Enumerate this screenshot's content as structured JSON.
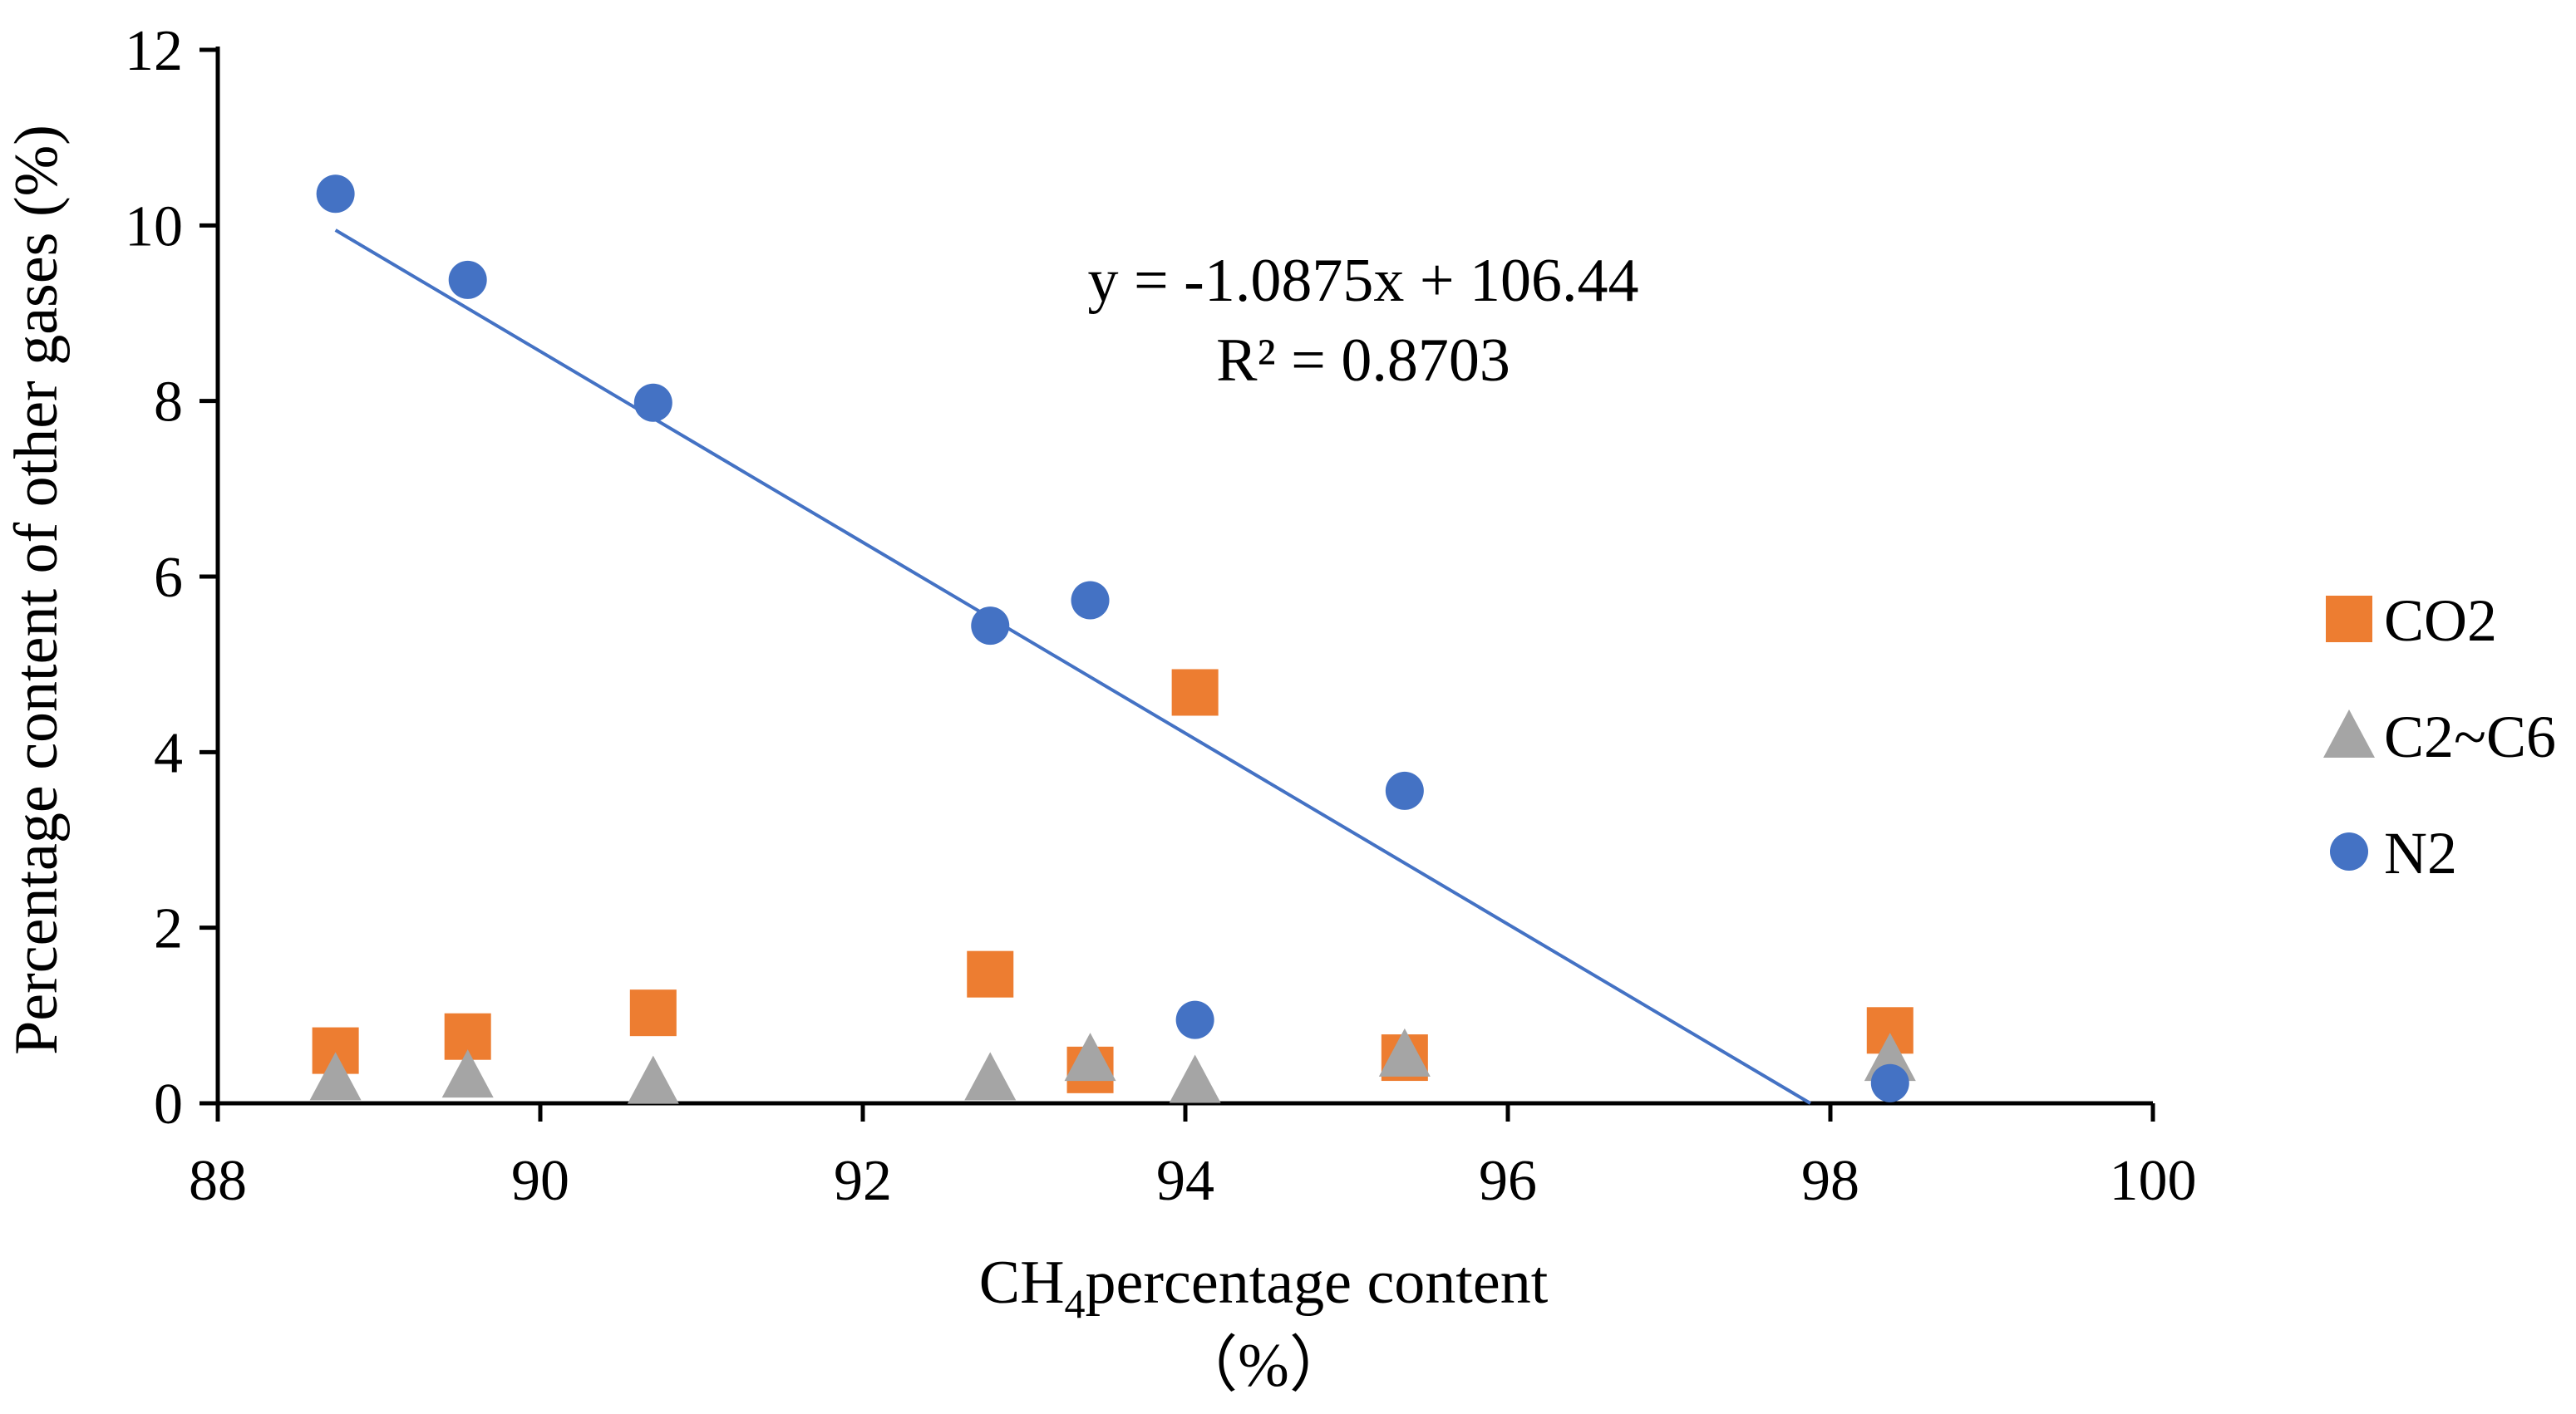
{
  "chart_data": {
    "type": "scatter",
    "title": "",
    "xlabel_main": "CH",
    "xlabel_sub": "4",
    "xlabel_rest": "percentage content",
    "xlabel_unit": "（%）",
    "ylabel": "Percentage content of other gases (%)",
    "xlim": [
      88,
      100
    ],
    "ylim": [
      0,
      12
    ],
    "x_ticks": [
      88,
      90,
      92,
      94,
      96,
      98,
      100
    ],
    "y_ticks": [
      0,
      2,
      4,
      6,
      8,
      10,
      12
    ],
    "grid": false,
    "legend_position": "right",
    "series": [
      {
        "name": "CO2",
        "marker": "square",
        "color": "#ED7D31",
        "points": [
          {
            "x": 88.73,
            "y": 0.6
          },
          {
            "x": 89.55,
            "y": 0.76
          },
          {
            "x": 90.7,
            "y": 1.03
          },
          {
            "x": 92.79,
            "y": 1.47
          },
          {
            "x": 93.41,
            "y": 0.38
          },
          {
            "x": 94.06,
            "y": 4.68
          },
          {
            "x": 95.36,
            "y": 0.52
          },
          {
            "x": 98.37,
            "y": 0.83
          }
        ]
      },
      {
        "name": "C2~C6",
        "marker": "triangle",
        "color": "#A5A5A5",
        "points": [
          {
            "x": 88.73,
            "y": 0.29
          },
          {
            "x": 89.55,
            "y": 0.32
          },
          {
            "x": 90.7,
            "y": 0.25
          },
          {
            "x": 92.79,
            "y": 0.29
          },
          {
            "x": 93.41,
            "y": 0.51
          },
          {
            "x": 94.06,
            "y": 0.26
          },
          {
            "x": 95.36,
            "y": 0.56
          },
          {
            "x": 98.37,
            "y": 0.51
          }
        ]
      },
      {
        "name": "N2",
        "marker": "circle",
        "color": "#4472C4",
        "points": [
          {
            "x": 88.73,
            "y": 10.36
          },
          {
            "x": 89.55,
            "y": 9.38
          },
          {
            "x": 90.7,
            "y": 7.98
          },
          {
            "x": 92.79,
            "y": 5.44
          },
          {
            "x": 93.41,
            "y": 5.73
          },
          {
            "x": 94.06,
            "y": 0.95
          },
          {
            "x": 95.36,
            "y": 3.56
          },
          {
            "x": 98.37,
            "y": 0.23
          }
        ]
      }
    ],
    "trendline": {
      "series": "N2",
      "slope": -1.0875,
      "intercept": 106.44,
      "x_start": 88.73,
      "color": "#4472C4",
      "equation": "y = -1.0875x + 106.44",
      "r_squared": "R² = 0.8703"
    }
  }
}
